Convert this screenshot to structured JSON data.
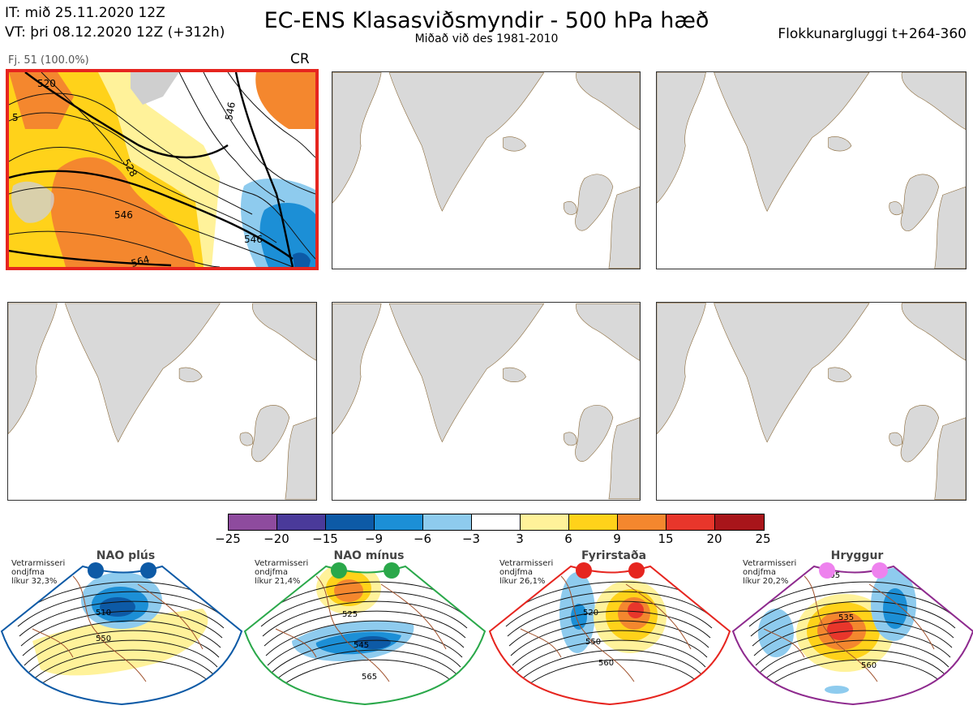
{
  "header": {
    "it_line": "IT: mið 25.11.2020 12Z",
    "vt_line": "VT: þri 08.12.2020 12Z  (+312h)",
    "title": "EC-ENS Klasasviðsmyndir - 500 hPa hæð",
    "subtitle": "Miðað við des 1981-2010",
    "window": "Flokkunargluggi t+264-360"
  },
  "panel1": {
    "cluster_label": "Fj. 51 (100.0%)",
    "regime_code": "CR",
    "contours": [
      "520",
      "546",
      "528",
      "546",
      "546",
      "564",
      "5"
    ]
  },
  "colorbar": {
    "ticks": [
      "−25",
      "−20",
      "−15",
      "−9",
      "−6",
      "−3",
      "3",
      "6",
      "9",
      "15",
      "20",
      "25"
    ],
    "colors": [
      "#8e4b9e",
      "#4a3a9a",
      "#0d5aa6",
      "#1c8fd6",
      "#8ecbee",
      "#ffffff",
      "#fff29a",
      "#ffd21a",
      "#f4872e",
      "#e8362b",
      "#a8151a"
    ]
  },
  "regimes": [
    {
      "name": "NAO plús",
      "note1": "Vetrarmisseri",
      "note2": "ondjfma",
      "note3": "líkur 32,3%",
      "labels": [
        "510",
        "550"
      ],
      "color": "#0d5aa6"
    },
    {
      "name": "NAO mínus",
      "note1": "Vetrarmisseri",
      "note2": "ondjfma",
      "note3": "líkur 21,4%",
      "labels": [
        "525",
        "545",
        "565"
      ],
      "color": "#2aa84a"
    },
    {
      "name": "Fyrirstaða",
      "note1": "Vetrarmisseri",
      "note2": "ondjfma",
      "note3": "líkur 26,1%",
      "labels": [
        "520",
        "550",
        "560"
      ],
      "color": "#e6251f"
    },
    {
      "name": "Hryggur",
      "note1": "Vetrarmisseri",
      "note2": "ondjfma",
      "note3": "líkur 20,2%",
      "labels": [
        "505",
        "535",
        "560"
      ],
      "color": "#8e2a8e"
    }
  ]
}
